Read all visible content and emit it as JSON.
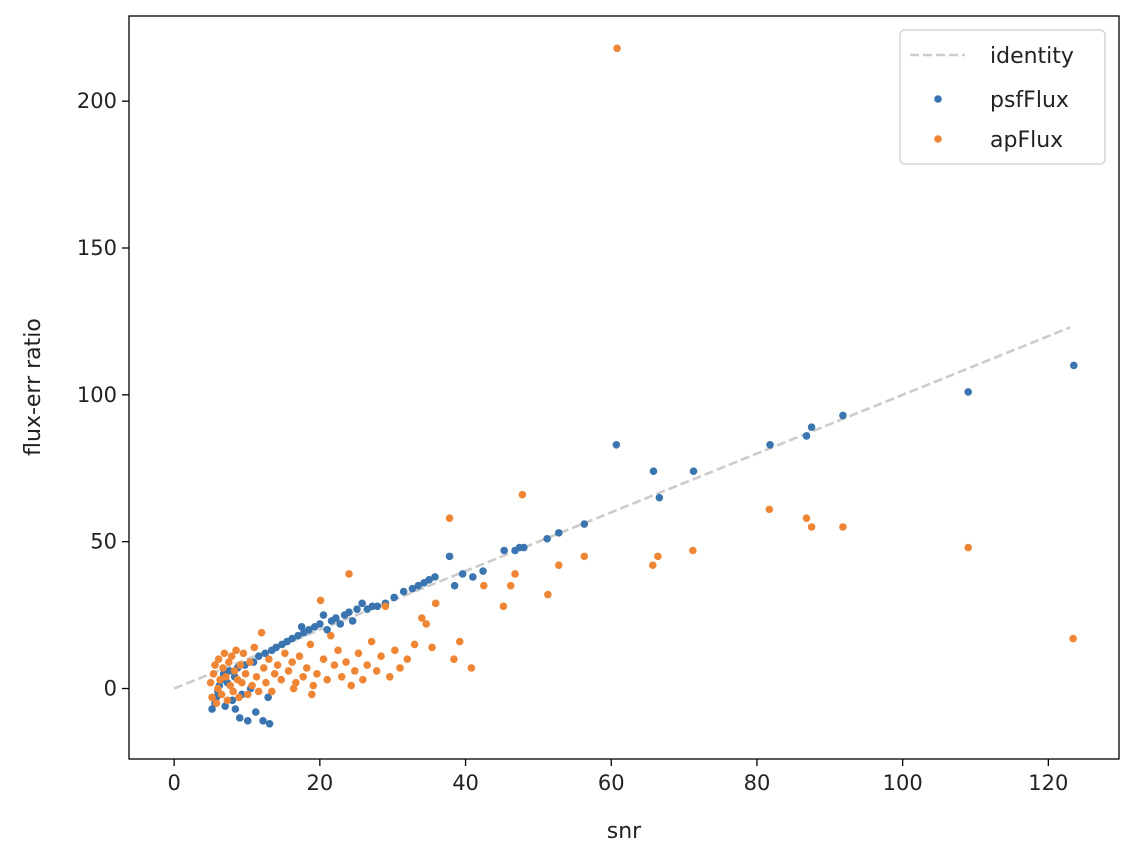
{
  "chart_data": {
    "type": "scatter",
    "title": "",
    "xlabel": "snr",
    "ylabel": "flux-err ratio",
    "xlim": [
      -6.2,
      129.7
    ],
    "ylim": [
      -24,
      229
    ],
    "xticks": [
      0,
      20,
      40,
      60,
      80,
      100,
      120
    ],
    "yticks": [
      0,
      50,
      100,
      150,
      200
    ],
    "grid": false,
    "legend_position": "top-right",
    "reference_line": {
      "name": "identity",
      "style": "dashed",
      "color": "#cccccc",
      "x": [
        0,
        123
      ],
      "y": [
        0,
        123
      ]
    },
    "series": [
      {
        "name": "psfFlux",
        "color": "#3b75af",
        "points": [
          [
            5.2,
            -7
          ],
          [
            5.6,
            -5
          ],
          [
            5.8,
            -3
          ],
          [
            6.0,
            -1
          ],
          [
            6.2,
            1
          ],
          [
            6.5,
            3
          ],
          [
            6.8,
            5
          ],
          [
            7.0,
            -6
          ],
          [
            7.3,
            2
          ],
          [
            7.6,
            6
          ],
          [
            8.0,
            -4
          ],
          [
            8.3,
            4
          ],
          [
            8.7,
            7
          ],
          [
            9.0,
            -10
          ],
          [
            9.3,
            -2
          ],
          [
            9.7,
            8
          ],
          [
            10.1,
            -11
          ],
          [
            10.5,
            0
          ],
          [
            10.9,
            9
          ],
          [
            11.2,
            -8
          ],
          [
            11.6,
            11
          ],
          [
            12.2,
            -11
          ],
          [
            12.5,
            12
          ],
          [
            13.1,
            -12
          ],
          [
            13.4,
            13
          ],
          [
            14.0,
            14
          ],
          [
            14.8,
            15
          ],
          [
            15.5,
            16
          ],
          [
            16.2,
            17
          ],
          [
            17.0,
            18
          ],
          [
            17.8,
            19
          ],
          [
            17.5,
            21
          ],
          [
            18.5,
            20
          ],
          [
            19.3,
            21
          ],
          [
            20.0,
            22
          ],
          [
            20.5,
            25
          ],
          [
            21.0,
            20
          ],
          [
            21.6,
            23
          ],
          [
            22.2,
            24
          ],
          [
            22.8,
            22
          ],
          [
            23.4,
            25
          ],
          [
            24.0,
            26
          ],
          [
            24.5,
            23
          ],
          [
            25.1,
            27
          ],
          [
            25.8,
            29
          ],
          [
            26.5,
            27
          ],
          [
            27.2,
            28
          ],
          [
            27.9,
            28
          ],
          [
            29.0,
            29
          ],
          [
            30.2,
            31
          ],
          [
            31.5,
            33
          ],
          [
            32.7,
            34
          ],
          [
            33.5,
            35
          ],
          [
            34.3,
            36
          ],
          [
            35.0,
            37
          ],
          [
            35.8,
            38
          ],
          [
            37.8,
            45
          ],
          [
            38.5,
            35
          ],
          [
            39.6,
            39
          ],
          [
            41.0,
            38
          ],
          [
            42.4,
            40
          ],
          [
            45.3,
            47
          ],
          [
            46.8,
            47
          ],
          [
            47.4,
            48
          ],
          [
            48.0,
            48
          ],
          [
            51.2,
            51
          ],
          [
            52.8,
            53
          ],
          [
            56.3,
            56
          ],
          [
            60.7,
            83
          ],
          [
            65.8,
            74
          ],
          [
            66.6,
            65
          ],
          [
            71.3,
            74
          ],
          [
            81.8,
            83
          ],
          [
            86.8,
            86
          ],
          [
            87.5,
            89
          ],
          [
            91.8,
            93
          ],
          [
            109.0,
            101
          ],
          [
            123.5,
            110
          ],
          [
            12.9,
            -3
          ],
          [
            8.4,
            -7
          ]
        ]
      },
      {
        "name": "apFlux",
        "color": "#ef8636",
        "points": [
          [
            5.0,
            2
          ],
          [
            5.2,
            -3
          ],
          [
            5.4,
            5
          ],
          [
            5.6,
            8
          ],
          [
            5.8,
            -5
          ],
          [
            6.0,
            0
          ],
          [
            6.1,
            10
          ],
          [
            6.3,
            3
          ],
          [
            6.5,
            -2
          ],
          [
            6.7,
            7
          ],
          [
            6.9,
            12
          ],
          [
            7.1,
            4
          ],
          [
            7.3,
            -4
          ],
          [
            7.5,
            9
          ],
          [
            7.7,
            1
          ],
          [
            7.9,
            11
          ],
          [
            8.1,
            -1
          ],
          [
            8.3,
            6
          ],
          [
            8.5,
            13
          ],
          [
            8.7,
            3
          ],
          [
            8.9,
            -3
          ],
          [
            9.1,
            8
          ],
          [
            9.3,
            2
          ],
          [
            9.5,
            12
          ],
          [
            9.8,
            5
          ],
          [
            10.1,
            -2
          ],
          [
            10.4,
            9
          ],
          [
            10.7,
            1
          ],
          [
            11.0,
            14
          ],
          [
            11.3,
            4
          ],
          [
            11.6,
            -1
          ],
          [
            12.0,
            19
          ],
          [
            12.3,
            7
          ],
          [
            12.6,
            2
          ],
          [
            13.0,
            10
          ],
          [
            13.4,
            -1
          ],
          [
            13.8,
            5
          ],
          [
            14.2,
            8
          ],
          [
            14.7,
            3
          ],
          [
            15.2,
            12
          ],
          [
            15.7,
            6
          ],
          [
            16.2,
            9
          ],
          [
            16.7,
            2
          ],
          [
            17.2,
            11
          ],
          [
            17.7,
            4
          ],
          [
            18.2,
            7
          ],
          [
            18.7,
            15
          ],
          [
            19.1,
            1
          ],
          [
            19.6,
            5
          ],
          [
            20.1,
            30
          ],
          [
            20.5,
            10
          ],
          [
            21.0,
            3
          ],
          [
            21.5,
            18
          ],
          [
            22.0,
            8
          ],
          [
            22.5,
            13
          ],
          [
            23.0,
            4
          ],
          [
            23.6,
            9
          ],
          [
            24.0,
            39
          ],
          [
            24.3,
            1
          ],
          [
            24.8,
            6
          ],
          [
            25.3,
            12
          ],
          [
            25.9,
            3
          ],
          [
            26.5,
            8
          ],
          [
            27.1,
            16
          ],
          [
            27.8,
            6
          ],
          [
            28.4,
            11
          ],
          [
            29.0,
            28
          ],
          [
            29.6,
            4
          ],
          [
            30.3,
            13
          ],
          [
            31.0,
            7
          ],
          [
            32.0,
            10
          ],
          [
            33.0,
            15
          ],
          [
            34.0,
            24
          ],
          [
            34.6,
            22
          ],
          [
            35.4,
            14
          ],
          [
            35.9,
            29
          ],
          [
            37.8,
            58
          ],
          [
            38.4,
            10
          ],
          [
            39.2,
            16
          ],
          [
            40.8,
            7
          ],
          [
            42.5,
            35
          ],
          [
            45.2,
            28
          ],
          [
            46.2,
            35
          ],
          [
            46.8,
            39
          ],
          [
            47.8,
            66
          ],
          [
            51.3,
            32
          ],
          [
            52.8,
            42
          ],
          [
            56.3,
            45
          ],
          [
            60.8,
            218
          ],
          [
            65.7,
            42
          ],
          [
            66.4,
            45
          ],
          [
            71.2,
            47
          ],
          [
            81.7,
            61
          ],
          [
            86.8,
            58
          ],
          [
            87.5,
            55
          ],
          [
            91.8,
            55
          ],
          [
            109.0,
            48
          ],
          [
            123.4,
            17
          ],
          [
            16.4,
            0
          ],
          [
            18.9,
            -2
          ]
        ]
      }
    ]
  }
}
